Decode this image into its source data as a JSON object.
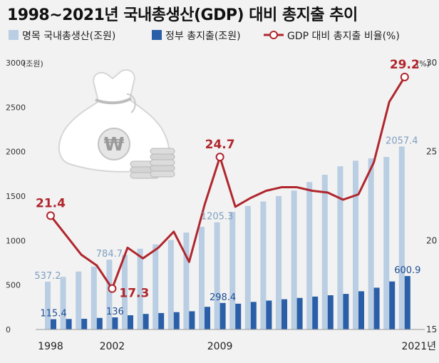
{
  "title": "1998~2021년 국내총생산(GDP) 대비 총지출 추이",
  "legend": {
    "gdp": "명목 국내총생산(조원)",
    "spending": "정부 총지출(조원)",
    "ratio": "GDP 대비 총지출 비율(%)"
  },
  "axis": {
    "left_unit": "(조원)",
    "right_unit": "(%)",
    "left_ticks": [
      "0",
      "500",
      "1000",
      "1500",
      "2000",
      "2500",
      "3000"
    ],
    "right_ticks": [
      "15",
      "20",
      "25",
      "30"
    ],
    "x_labels": [
      "1998",
      "2002",
      "2009",
      "2021년"
    ]
  },
  "colors": {
    "gdp_bar": "#b9cde3",
    "spending_bar": "#2a5fa8",
    "ratio_line": "#b0262d",
    "gdp_label": "#7f9fc0",
    "spending_label": "#1f4f92",
    "background": "#f2f2f2"
  },
  "decoration": "money-bag-won-icon",
  "chart_data": {
    "type": "bar",
    "x": [
      1998,
      1999,
      2000,
      2001,
      2002,
      2003,
      2004,
      2005,
      2006,
      2007,
      2008,
      2009,
      2010,
      2011,
      2012,
      2013,
      2014,
      2015,
      2016,
      2017,
      2018,
      2019,
      2020,
      2021
    ],
    "ylim_left": [
      0,
      3000
    ],
    "ylim_right": [
      15,
      30
    ],
    "series": [
      {
        "name": "명목 국내총생산(조원)",
        "type": "bar",
        "axis": "left",
        "values": [
          537.2,
          591.5,
          651.6,
          707.0,
          784.7,
          837.4,
          908.4,
          957.4,
          1005.6,
          1089.7,
          1154.2,
          1205.3,
          1322.6,
          1388.9,
          1440.1,
          1500.8,
          1562.9,
          1658.0,
          1740.8,
          1835.7,
          1898.2,
          1924.5,
          1940.7,
          2057.4
        ]
      },
      {
        "name": "정부 총지출(조원)",
        "type": "bar",
        "axis": "left",
        "values": [
          115.4,
          118.0,
          120.0,
          130.0,
          136,
          160.0,
          175.0,
          185.0,
          195.0,
          205.0,
          255.0,
          298.4,
          290.0,
          310.0,
          325.0,
          340.0,
          355.0,
          370.0,
          385.0,
          400.0,
          430.0,
          470.0,
          540.0,
          600.9
        ]
      },
      {
        "name": "GDP 대비 총지출 비율(%)",
        "type": "line",
        "axis": "right",
        "values": [
          21.4,
          20.3,
          19.2,
          18.6,
          17.3,
          19.6,
          19.0,
          19.6,
          20.5,
          18.8,
          22.0,
          24.7,
          21.9,
          22.4,
          22.8,
          23.0,
          23.0,
          22.8,
          22.7,
          22.3,
          22.6,
          24.4,
          27.8,
          29.2
        ]
      }
    ],
    "value_labels": {
      "gdp": [
        [
          "1998",
          "537.2"
        ],
        [
          "2002",
          "784.7"
        ],
        [
          "2009",
          "1205.3"
        ],
        [
          "2021",
          "2057.4"
        ]
      ],
      "spending": [
        [
          "1998",
          "115.4"
        ],
        [
          "2002",
          "136"
        ],
        [
          "2009",
          "298.4"
        ],
        [
          "2021",
          "600.9"
        ]
      ],
      "ratio": [
        [
          "1998",
          "21.4"
        ],
        [
          "2002",
          "17.3"
        ],
        [
          "2009",
          "24.7"
        ],
        [
          "2021",
          "29.2"
        ]
      ]
    },
    "grid": false,
    "legend_position": "top"
  }
}
